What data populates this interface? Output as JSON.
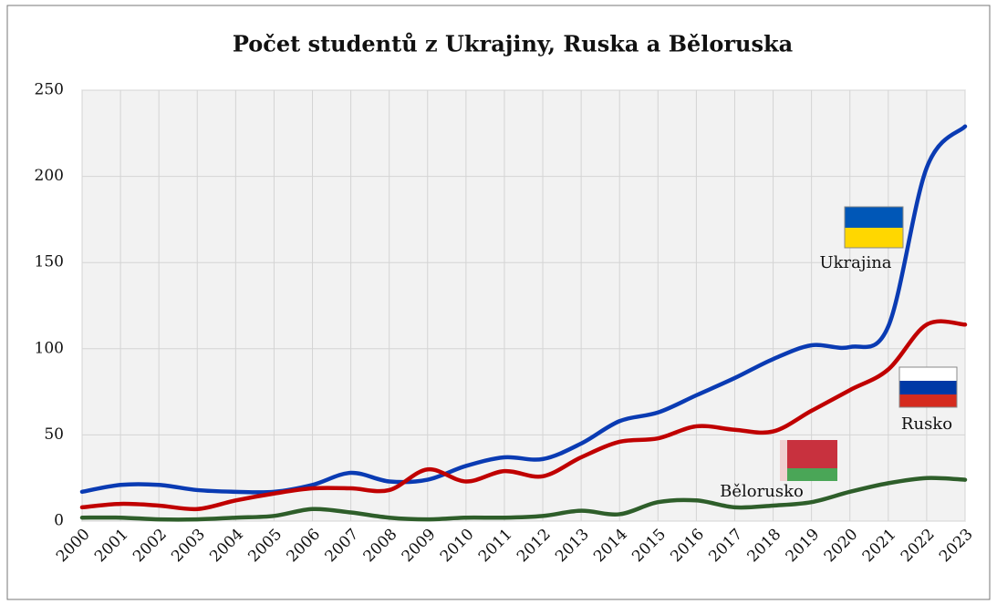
{
  "chart_data": {
    "type": "line",
    "title": "Počet studentů z Ukrajiny, Ruska a Běloruska",
    "categories": [
      "2000",
      "2001",
      "2002",
      "2003",
      "2004",
      "2005",
      "2006",
      "2007",
      "2008",
      "2009",
      "2010",
      "2011",
      "2012",
      "2013",
      "2014",
      "2015",
      "2016",
      "2017",
      "2018",
      "2019",
      "2020",
      "2021",
      "2022",
      "2023"
    ],
    "series": [
      {
        "name": "Ukrajina",
        "color": "#0a3bb3",
        "values": [
          17,
          21,
          21,
          18,
          17,
          17,
          21,
          28,
          23,
          24,
          32,
          37,
          36,
          45,
          58,
          63,
          73,
          83,
          94,
          102,
          101,
          113,
          205,
          229
        ]
      },
      {
        "name": "Rusko",
        "color": "#c00000",
        "values": [
          8,
          10,
          9,
          7,
          12,
          16,
          19,
          19,
          18,
          30,
          23,
          29,
          26,
          37,
          46,
          48,
          55,
          53,
          52,
          64,
          76,
          88,
          114,
          114
        ]
      },
      {
        "name": "Bělorusko",
        "color": "#2e5e2a",
        "values": [
          2,
          2,
          1,
          1,
          2,
          3,
          7,
          5,
          2,
          1,
          2,
          2,
          3,
          6,
          4,
          11,
          12,
          8,
          9,
          11,
          17,
          22,
          25,
          24
        ]
      }
    ],
    "ylim": [
      0,
      250
    ],
    "yticks": [
      0,
      50,
      100,
      150,
      200,
      250
    ],
    "grid": true
  }
}
